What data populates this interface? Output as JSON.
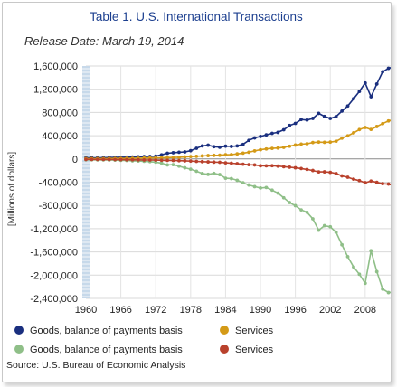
{
  "chart_data": {
    "type": "line",
    "title": "Table 1. U.S. International Transactions",
    "subtitle": "Release Date: March 19, 2014",
    "ylabel": "[Millions of dollars]",
    "xlabel": "",
    "source": "Source: U.S. Bureau of Economic Analysis",
    "ylim": [
      -2400000,
      1600000
    ],
    "yticks": [
      1600000,
      1200000,
      800000,
      400000,
      0,
      -400000,
      -800000,
      -1200000,
      -1600000,
      -2000000,
      -2400000
    ],
    "ytick_labels": [
      "1,600,000",
      "1,200,000",
      "800,000",
      "400,000",
      "0",
      "-400,000",
      "-800,000",
      "-1,200,000",
      "-1,600,000",
      "-2,000,000",
      "-2,400,000"
    ],
    "xlim": [
      1960,
      2013
    ],
    "xticks": [
      "1960",
      "1966",
      "1972",
      "1978",
      "1984",
      "1990",
      "1996",
      "2002",
      "2008"
    ],
    "grid": true,
    "legend_position": "bottom",
    "x": [
      1960,
      1961,
      1962,
      1963,
      1964,
      1965,
      1966,
      1967,
      1968,
      1969,
      1970,
      1971,
      1972,
      1973,
      1974,
      1975,
      1976,
      1977,
      1978,
      1979,
      1980,
      1981,
      1982,
      1983,
      1984,
      1985,
      1986,
      1987,
      1988,
      1989,
      1990,
      1991,
      1992,
      1993,
      1994,
      1995,
      1996,
      1997,
      1998,
      1999,
      2000,
      2001,
      2002,
      2003,
      2004,
      2005,
      2006,
      2007,
      2008,
      2009,
      2010,
      2011,
      2012,
      2013
    ],
    "series": [
      {
        "name": "Goods, balance of payments basis",
        "color": "#1a2f7f",
        "values": [
          20000,
          21000,
          21000,
          22000,
          25000,
          26000,
          29000,
          31000,
          34000,
          37000,
          42000,
          43000,
          49000,
          71000,
          98000,
          107000,
          115000,
          121000,
          142000,
          184000,
          224000,
          237000,
          211000,
          202000,
          220000,
          216000,
          224000,
          250000,
          320000,
          362000,
          387000,
          414000,
          440000,
          457000,
          503000,
          576000,
          612000,
          679000,
          670000,
          698000,
          784000,
          731000,
          697000,
          730000,
          824000,
          911000,
          1037000,
          1162000,
          1307000,
          1070000,
          1290000,
          1500000,
          1560000,
          1590000
        ]
      },
      {
        "name": "Services",
        "color": "#d49a17",
        "values": [
          6000,
          6000,
          7000,
          7000,
          8000,
          9000,
          9000,
          10000,
          11000,
          12000,
          15000,
          17000,
          18000,
          20000,
          23000,
          26000,
          30000,
          35000,
          41000,
          46000,
          52000,
          58000,
          62000,
          64000,
          72000,
          74000,
          87000,
          100000,
          116000,
          138000,
          158000,
          172000,
          182000,
          188000,
          200000,
          219000,
          239000,
          256000,
          262000,
          282000,
          290000,
          286000,
          290000,
          305000,
          358000,
          398000,
          449000,
          506000,
          542000,
          508000,
          558000,
          608000,
          654000,
          682000
        ]
      },
      {
        "name": "Goods, balance of payments basis",
        "color": "#8fbf88",
        "values": [
          -15000,
          -15000,
          -16000,
          -17000,
          -19000,
          -21000,
          -25000,
          -27000,
          -33000,
          -36000,
          -40000,
          -46000,
          -56000,
          -71000,
          -103000,
          -98000,
          -124000,
          -152000,
          -176000,
          -212000,
          -250000,
          -265000,
          -248000,
          -269000,
          -332000,
          -338000,
          -368000,
          -410000,
          -448000,
          -477000,
          -499000,
          -491000,
          -537000,
          -589000,
          -669000,
          -750000,
          -804000,
          -877000,
          -918000,
          -1030000,
          -1226000,
          -1148000,
          -1167000,
          -1264000,
          -1477000,
          -1682000,
          -1860000,
          -1985000,
          -2140000,
          -1580000,
          -1940000,
          -2240000,
          -2300000,
          -2290000
        ]
      },
      {
        "name": "Services",
        "color": "#b9412c",
        "values": [
          -8000,
          -8000,
          -9000,
          -9000,
          -10000,
          -11000,
          -12000,
          -14000,
          -15000,
          -16000,
          -18000,
          -19000,
          -21000,
          -23000,
          -25000,
          -27000,
          -30000,
          -33000,
          -37000,
          -42000,
          -47000,
          -51000,
          -55000,
          -58000,
          -67000,
          -73000,
          -81000,
          -91000,
          -99000,
          -103000,
          -117000,
          -118000,
          -116000,
          -123000,
          -133000,
          -142000,
          -152000,
          -165000,
          -181000,
          -199000,
          -223000,
          -222000,
          -231000,
          -250000,
          -291000,
          -314000,
          -348000,
          -373000,
          -409000,
          -380000,
          -403000,
          -426000,
          -432000,
          -459000
        ]
      }
    ]
  }
}
